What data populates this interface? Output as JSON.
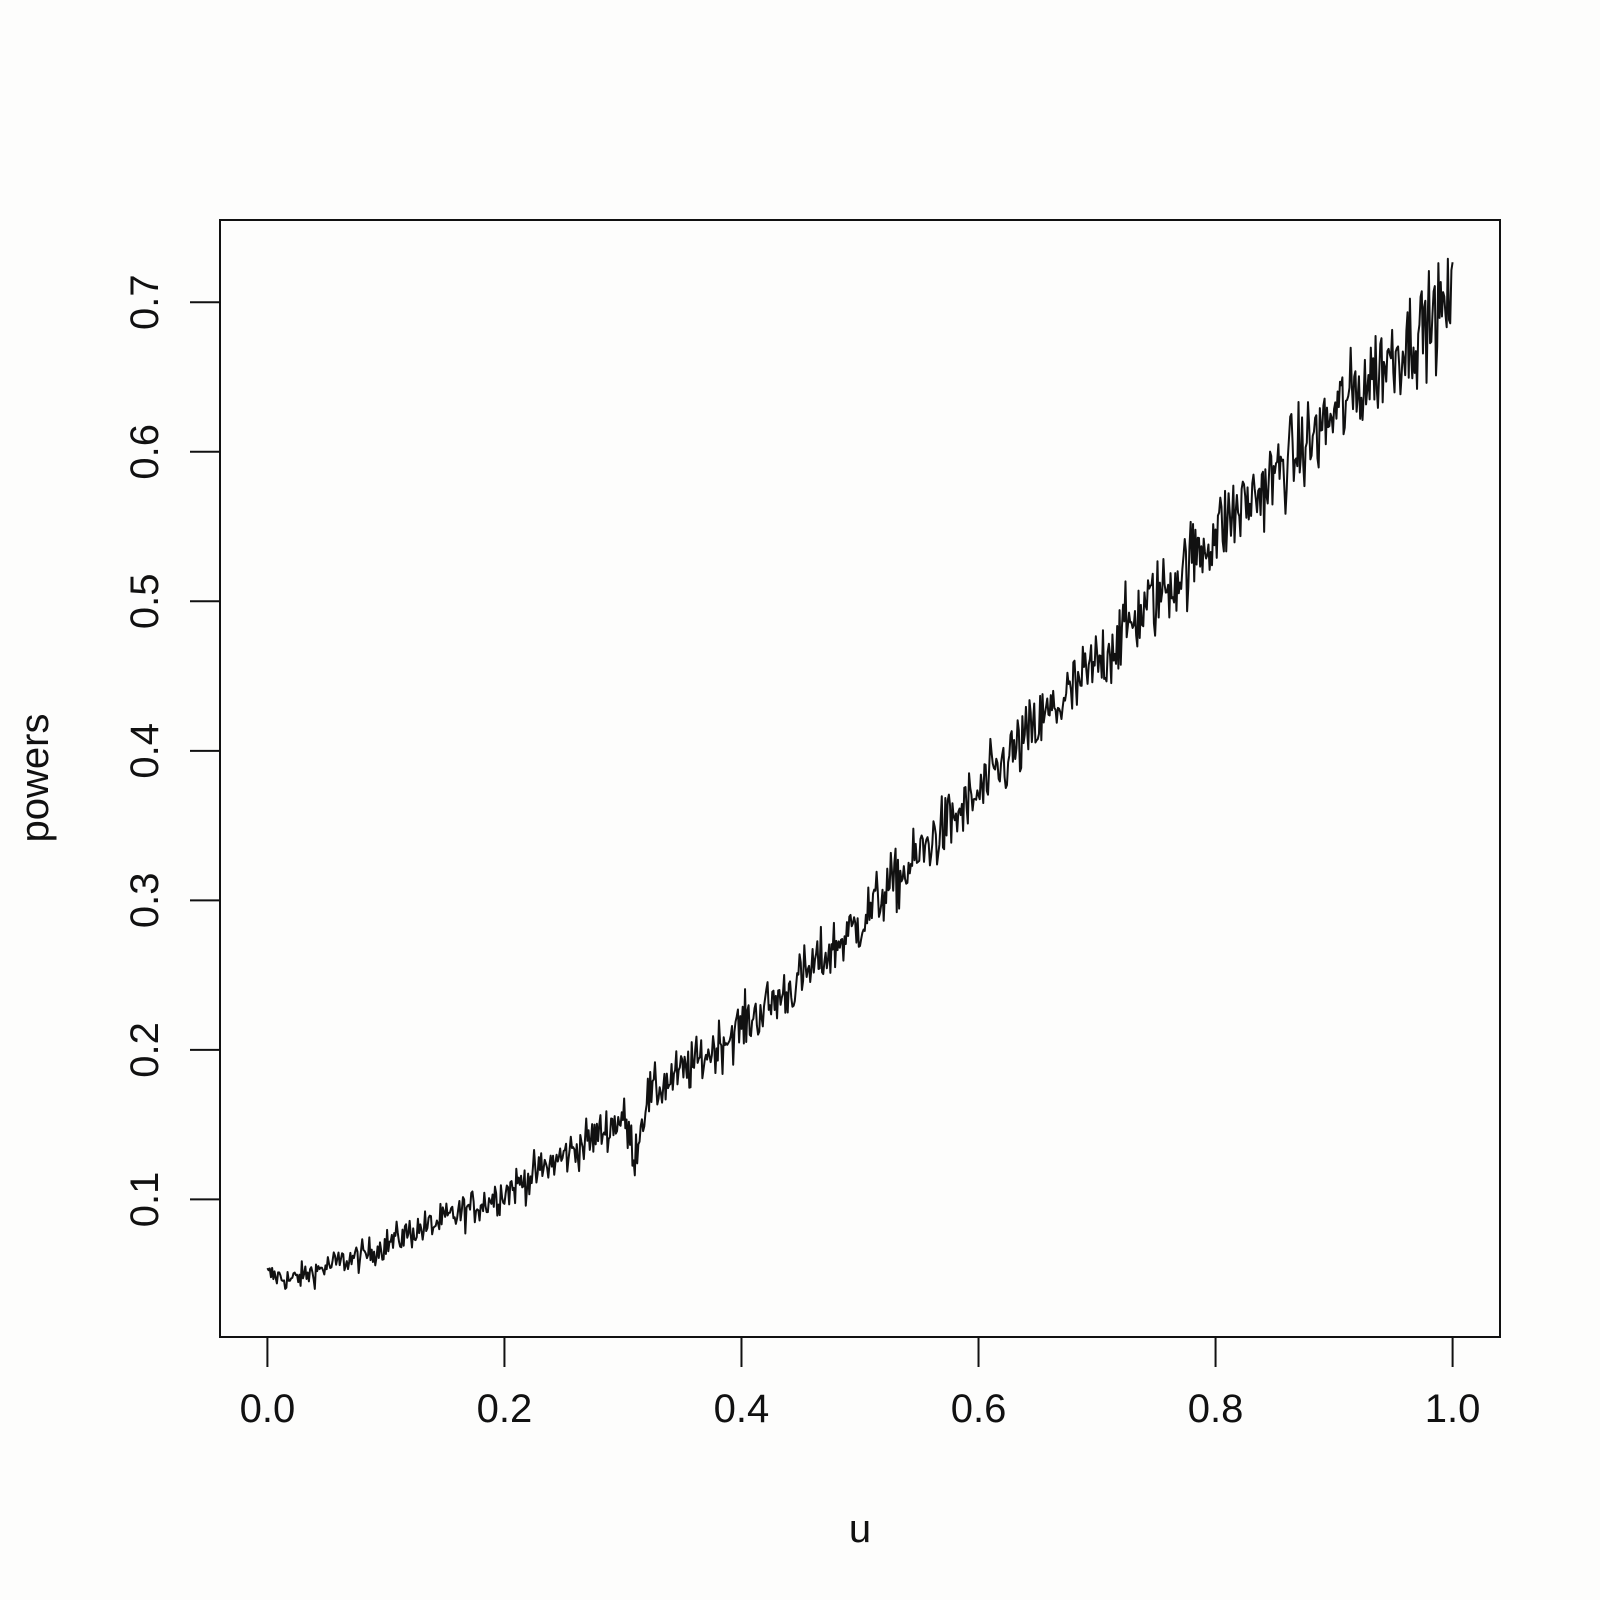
{
  "chart_data": {
    "type": "line",
    "title": "",
    "xlabel": "u",
    "ylabel": "powers",
    "xlim": [
      -0.04,
      1.04
    ],
    "ylim": [
      0.008,
      0.755
    ],
    "x_ticks": [
      0.0,
      0.2,
      0.4,
      0.6,
      0.8,
      1.0
    ],
    "x_tick_labels": [
      "0.0",
      "0.2",
      "0.4",
      "0.6",
      "0.8",
      "1.0"
    ],
    "y_ticks": [
      0.1,
      0.2,
      0.3,
      0.4,
      0.5,
      0.6,
      0.7
    ],
    "y_tick_labels": [
      "0.1",
      "0.2",
      "0.3",
      "0.4",
      "0.5",
      "0.6",
      "0.7"
    ],
    "grid": false,
    "legend": "none",
    "line_color": "#111111",
    "series": [
      {
        "x": [
          0.0,
          0.02,
          0.04,
          0.06,
          0.08,
          0.1,
          0.12,
          0.14,
          0.16,
          0.18,
          0.2,
          0.22,
          0.24,
          0.26,
          0.28,
          0.3,
          0.31,
          0.32,
          0.34,
          0.36,
          0.38,
          0.4,
          0.42,
          0.44,
          0.46,
          0.48,
          0.5,
          0.52,
          0.54,
          0.56,
          0.58,
          0.6,
          0.62,
          0.64,
          0.66,
          0.68,
          0.7,
          0.72,
          0.74,
          0.76,
          0.78,
          0.8,
          0.82,
          0.84,
          0.86,
          0.88,
          0.9,
          0.92,
          0.94,
          0.96,
          0.98,
          1.0
        ],
        "values": [
          0.05,
          0.046,
          0.052,
          0.058,
          0.062,
          0.07,
          0.078,
          0.083,
          0.09,
          0.097,
          0.105,
          0.114,
          0.124,
          0.134,
          0.144,
          0.155,
          0.13,
          0.168,
          0.18,
          0.19,
          0.203,
          0.216,
          0.228,
          0.24,
          0.255,
          0.27,
          0.285,
          0.305,
          0.32,
          0.34,
          0.355,
          0.37,
          0.39,
          0.408,
          0.425,
          0.44,
          0.458,
          0.478,
          0.495,
          0.51,
          0.528,
          0.546,
          0.562,
          0.575,
          0.593,
          0.607,
          0.625,
          0.641,
          0.658,
          0.672,
          0.687,
          0.7
        ]
      }
    ]
  }
}
